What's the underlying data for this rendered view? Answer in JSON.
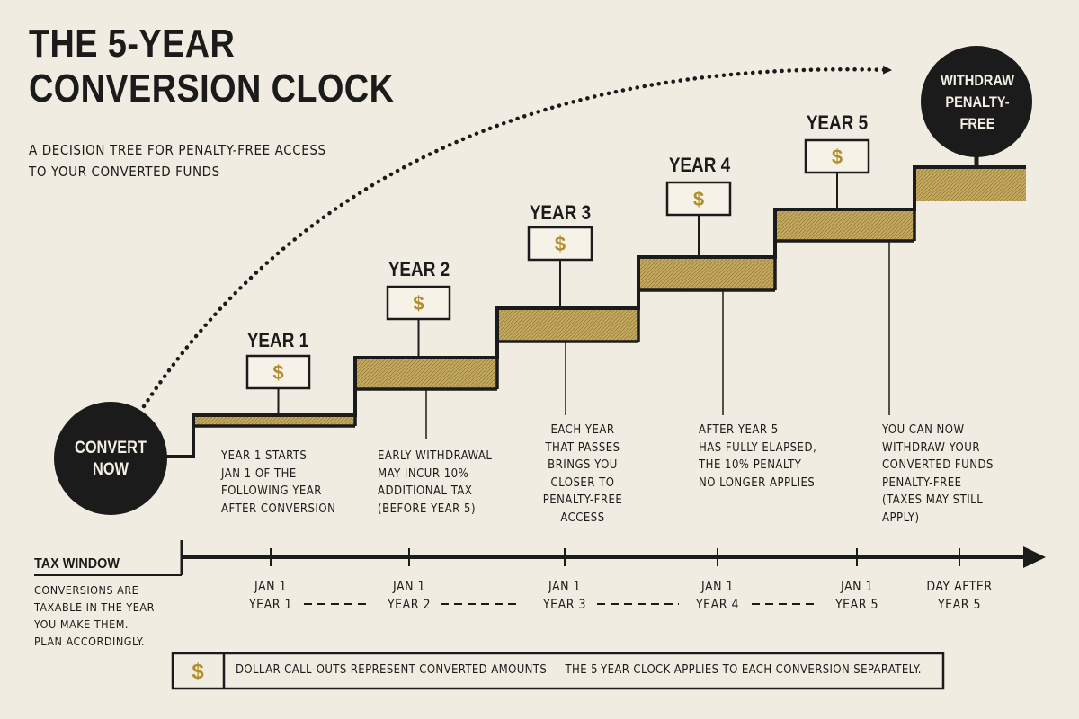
{
  "title": {
    "line1": "THE 5-YEAR",
    "line2": "CONVERSION CLOCK"
  },
  "subtitle": {
    "line1": "A DECISION TREE FOR PENALTY-FREE ACCESS",
    "line2": "TO YOUR CONVERTED FUNDS"
  },
  "start": {
    "line1": "CONVERT",
    "line2": "NOW"
  },
  "end": {
    "line1": "WITHDRAW",
    "line2": "PENALTY-",
    "line3": "FREE"
  },
  "colors": {
    "background": "#f1ece1",
    "ink": "#1b1b1b",
    "gold": "#c4a95f",
    "dollar": "#b08d2e"
  },
  "icons": {
    "callout": "dollar-sign-icon",
    "arrow": "dotted-arc-arrow-icon"
  },
  "years": [
    {
      "label": "YEAR 1",
      "dollar": "$"
    },
    {
      "label": "YEAR 2",
      "dollar": "$"
    },
    {
      "label": "YEAR 3",
      "dollar": "$"
    },
    {
      "label": "YEAR 4",
      "dollar": "$"
    },
    {
      "label": "YEAR 5",
      "dollar": "$"
    }
  ],
  "notes": [
    {
      "lines": [
        "YEAR 1 STARTS",
        "JAN 1 OF THE",
        "FOLLOWING YEAR",
        "AFTER CONVERSION"
      ]
    },
    {
      "lines": [
        "EARLY WITHDRAWAL",
        "MAY INCUR 10%",
        "ADDITIONAL TAX",
        "(BEFORE YEAR 5)"
      ]
    },
    {
      "lines": [
        "EACH YEAR",
        "THAT PASSES",
        "BRINGS YOU",
        "CLOSER TO",
        "PENALTY-FREE",
        "ACCESS"
      ]
    },
    {
      "lines": [
        "AFTER YEAR 5",
        "HAS FULLY ELAPSED,",
        "THE 10% PENALTY",
        "NO LONGER APPLIES"
      ]
    },
    {
      "lines": [
        "YOU CAN NOW",
        "WITHDRAW YOUR",
        "CONVERTED FUNDS",
        "PENALTY-FREE",
        "(TAXES MAY STILL",
        "APPLY)"
      ]
    }
  ],
  "timeline": [
    {
      "line1": "JAN 1",
      "line2": "YEAR 1"
    },
    {
      "line1": "JAN 1",
      "line2": "YEAR 2"
    },
    {
      "line1": "JAN 1",
      "line2": "YEAR 3"
    },
    {
      "line1": "JAN 1",
      "line2": "YEAR 4"
    },
    {
      "line1": "JAN 1",
      "line2": "YEAR 5"
    },
    {
      "line1": "DAY AFTER",
      "line2": "YEAR 5"
    }
  ],
  "tax_window": {
    "title": "TAX WINDOW",
    "lines": [
      "CONVERSIONS ARE",
      "TAXABLE IN THE YEAR",
      "YOU MAKE THEM.",
      "PLAN ACCORDINGLY."
    ]
  },
  "legend": {
    "dollar": "$",
    "text": "DOLLAR CALL-OUTS REPRESENT CONVERTED AMOUNTS  —  THE 5-YEAR CLOCK APPLIES TO EACH CONVERSION SEPARATELY."
  }
}
